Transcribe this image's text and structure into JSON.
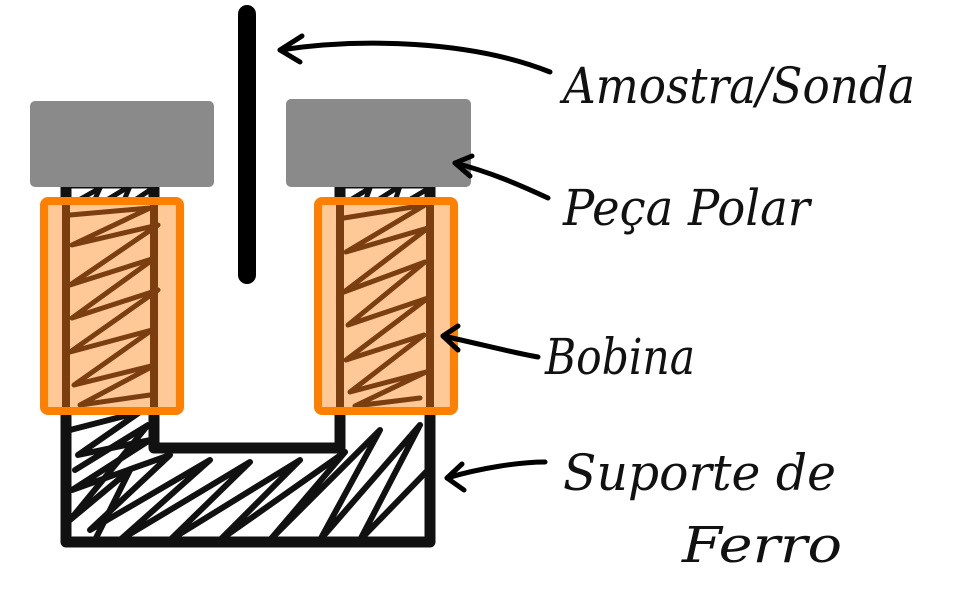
{
  "labels": {
    "sample": "Amostra/Sonda",
    "pole_piece": "Peça Polar",
    "coil": "Bobina",
    "support_line1": "Suporte de",
    "support_line2": "Ferro"
  },
  "colors": {
    "background": "#ffffff",
    "iron": "#111111",
    "pole_piece": "#8a8a8a",
    "coil_fill": "#ffc896",
    "coil_border": "#ff7f00",
    "coil_hatch": "#7a3e10",
    "sample_rod": "#000000",
    "hatch": "#111111"
  }
}
